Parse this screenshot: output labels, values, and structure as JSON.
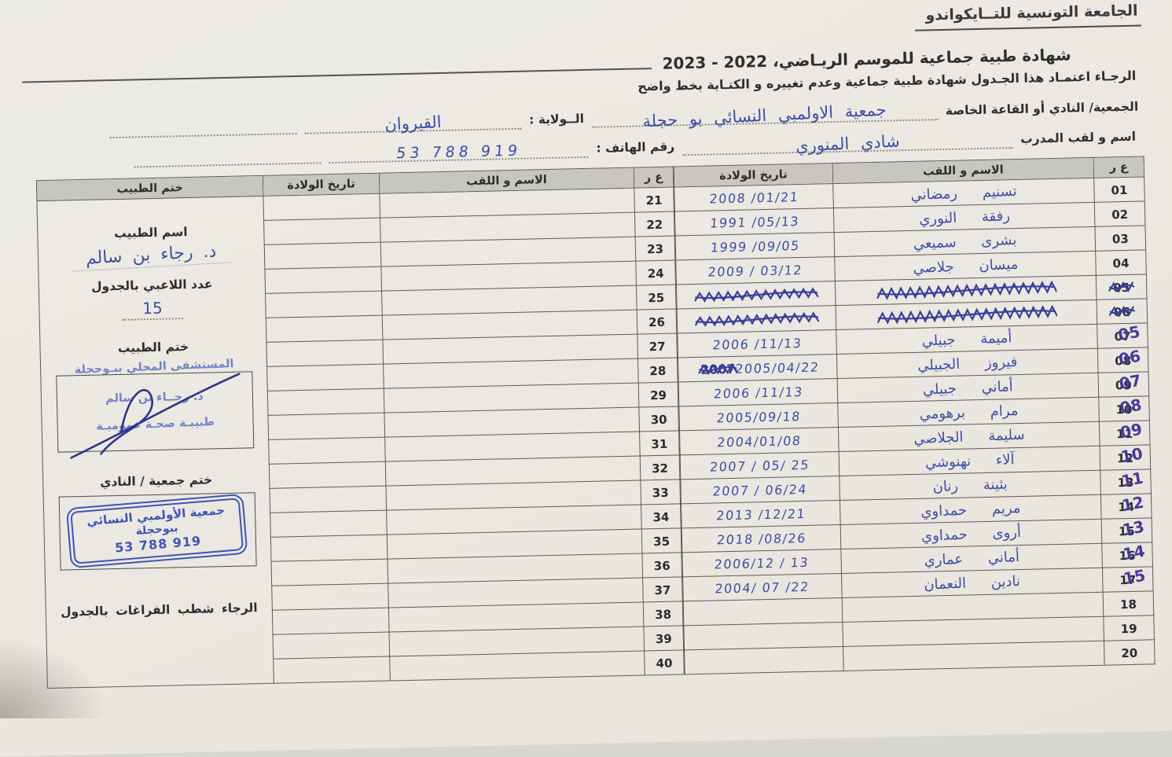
{
  "page": {
    "federation": "الجامعة التونسية للتــايكواندو",
    "title": "شهادة طبية جماعية  للموسم الريـاضي، 2022 - 2023",
    "instruction": "الرجـاء اعتمـاد هذا الجـدول  شهادة طبية جماعية وعدم تغييره و الكتـابة بخط واضح"
  },
  "fields": {
    "club_label": "الجمعية/ النادي أو القاعة الخاصة",
    "club_value": "جمعية الاولمبي النسائي بو حجلة",
    "wilaya_label": "الــولاية :",
    "wilaya_value": "القيروان",
    "trainer_label": "اسم و لقب المدرب",
    "trainer_value": "شادي  المنوري",
    "phone_label": "رقم الهاتف :",
    "phone_value": "53 788 919"
  },
  "table": {
    "headers": {
      "num": "ع ر",
      "name": "الاسم و اللقب",
      "dob": "تاريخ الولادة",
      "stamp": "ختم الطبيب"
    },
    "rows_right": [
      {
        "num": "01",
        "name": "تسنيم رمضاني",
        "dob": "2008 /01/21"
      },
      {
        "num": "02",
        "name": "رفقة النوري",
        "dob": "1991 /05/13"
      },
      {
        "num": "03",
        "name": "بشرى سميعي",
        "dob": "1999 /09/05"
      },
      {
        "num": "04",
        "name": "ميسان جلاصي",
        "dob": "2009 / 03/12"
      },
      {
        "num": "05",
        "scribbled": true
      },
      {
        "num": "06",
        "scribbled": true
      },
      {
        "num": "07",
        "num_corrected": "05",
        "name": "أميمة جبيلي",
        "dob": "2006 /11/13"
      },
      {
        "num": "08",
        "num_corrected": "06",
        "name": "فيروز الجبيلي",
        "dob": "2005/04/22",
        "dob_crossed": "2007"
      },
      {
        "num": "09",
        "num_corrected": "07",
        "name": "أماني جبيلي",
        "dob": "2006 /11/13"
      },
      {
        "num": "10",
        "num_corrected": "08",
        "name": "مرام برهومي",
        "dob": "2005/09/18"
      },
      {
        "num": "11",
        "num_corrected": "09",
        "name": "سليمة الجلاصي",
        "dob": "2004/01/08"
      },
      {
        "num": "12",
        "num_corrected": "10",
        "name": "آلاء نهنوشي",
        "dob": "2007 / 05/ 25"
      },
      {
        "num": "13",
        "num_corrected": "11",
        "name": "بثينة رنان",
        "dob": "2007 / 06/24"
      },
      {
        "num": "14",
        "num_corrected": "12",
        "name": "مريم حمداوي",
        "dob": "2013 /12/21"
      },
      {
        "num": "15",
        "num_corrected": "13",
        "name": "أروى حمداوي",
        "dob": "2018 /08/26"
      },
      {
        "num": "16",
        "num_corrected": "14",
        "name": "أماني عماري",
        "dob": "2006/12 / 13"
      },
      {
        "num": "17",
        "num_corrected": "15",
        "name": "نادين النعمان",
        "dob": "2004/ 07 /22"
      },
      {
        "num": "18"
      },
      {
        "num": "19"
      },
      {
        "num": "20"
      }
    ],
    "rows_middle": [
      {
        "num": "21"
      },
      {
        "num": "22"
      },
      {
        "num": "23"
      },
      {
        "num": "24"
      },
      {
        "num": "25"
      },
      {
        "num": "26"
      },
      {
        "num": "27"
      },
      {
        "num": "28"
      },
      {
        "num": "29"
      },
      {
        "num": "30"
      },
      {
        "num": "31"
      },
      {
        "num": "32"
      },
      {
        "num": "33"
      },
      {
        "num": "34"
      },
      {
        "num": "35"
      },
      {
        "num": "36"
      },
      {
        "num": "37"
      },
      {
        "num": "38"
      },
      {
        "num": "39"
      },
      {
        "num": "40"
      }
    ]
  },
  "panel": {
    "doctor_name_label": "اسم الطبيب",
    "doctor_name_value": "د. رجاء بن سالم",
    "players_count_label": "عدد اللاعبي بالجدول",
    "players_count_value": "15",
    "doctor_stamp_label": "ختم الطبيب",
    "doctor_stamp_lines": [
      "المستشفى المحلي ببـوحجلة",
      "د. رجــاء بن سالم",
      "طبيبـة صحـة عموميـة"
    ],
    "club_stamp_label": "ختم جمعية / النادي",
    "club_stamp_lines": [
      "جمعية الأولمبي النسائي",
      "ببوحجلة",
      "53 788 919"
    ],
    "note": "الرجاء شطب  الفراغات بالجدول"
  }
}
